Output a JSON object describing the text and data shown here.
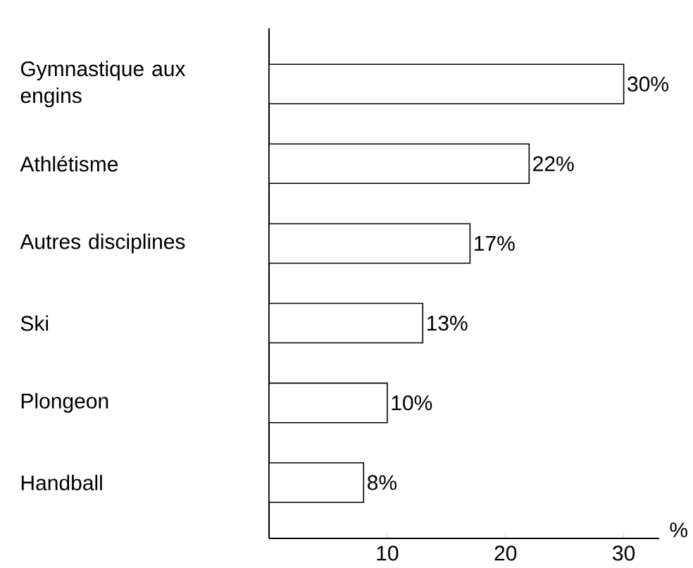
{
  "chart_data": {
    "type": "bar",
    "orientation": "horizontal",
    "xlabel": "%",
    "categories": [
      "Gymnastique aux engins",
      "Athlétisme",
      "Autres disciplines",
      "Ski",
      "Plongeon",
      "Handball"
    ],
    "values": [
      30,
      22,
      17,
      13,
      10,
      8
    ],
    "value_labels": [
      "30%",
      "22%",
      "17%",
      "13%",
      "10%",
      "8%"
    ],
    "color": "#ffffff",
    "xlim": [
      0,
      33
    ],
    "xticks": [
      10,
      20,
      30
    ],
    "grid": false
  }
}
